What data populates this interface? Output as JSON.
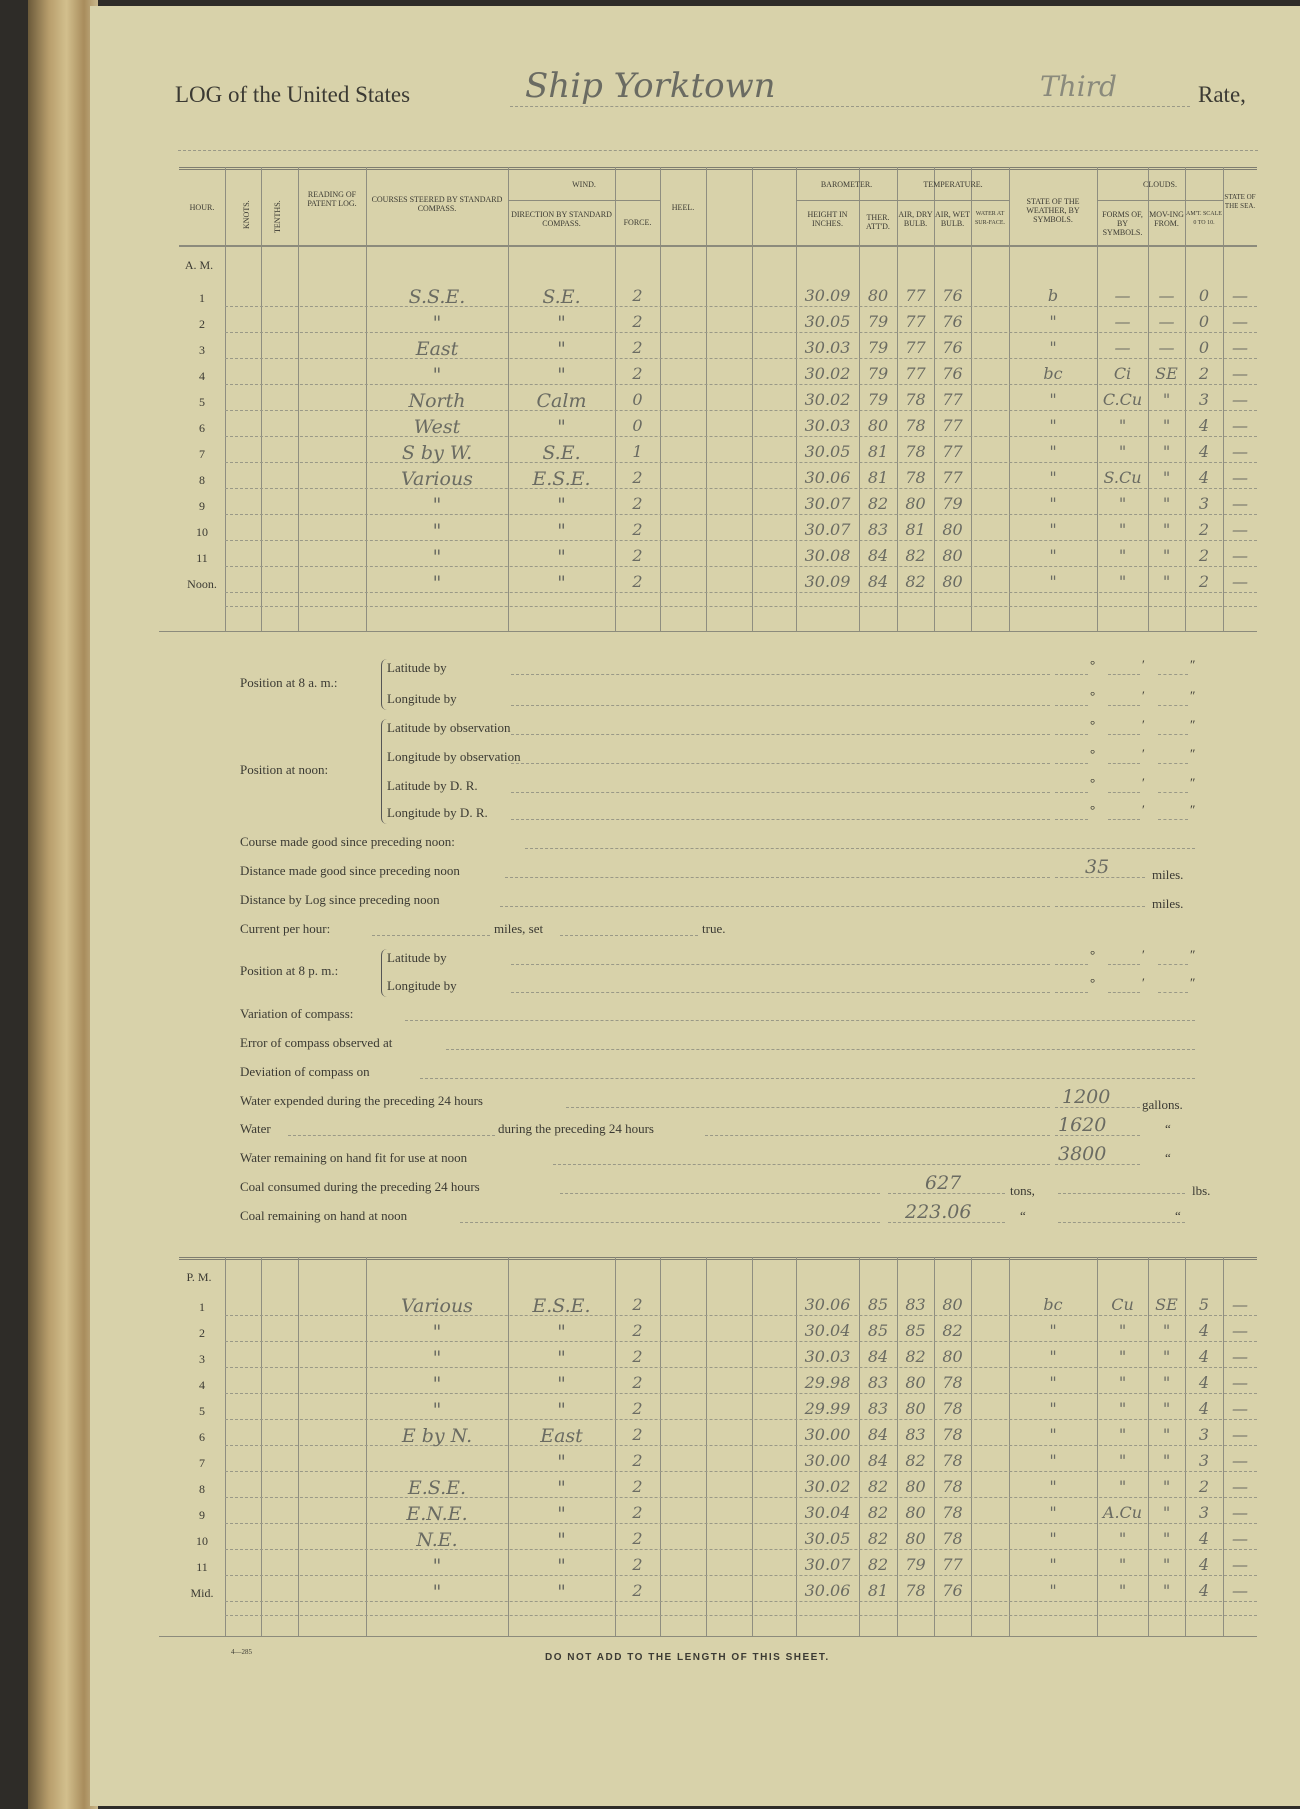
{
  "title": {
    "prefix": "LOG of the United States",
    "ship": "Ship Yorktown",
    "rate_value": "Third",
    "rate_label": "Rate,"
  },
  "headers": {
    "hour": "Hour.",
    "knots": "Knots.",
    "tenths": "Tenths.",
    "patent_log": "Reading of Patent Log.",
    "courses": "Courses steered by standard compass.",
    "wind": "Wind.",
    "wind_direction": "Direction by Standard Compass.",
    "wind_force": "Force.",
    "heel": "Heel.",
    "barometer": "Barometer.",
    "baro_height": "Height in Inches.",
    "ther_attd": "Ther. Att'd.",
    "temperature": "Temperature.",
    "air_dry": "Air, Dry Bulb.",
    "air_wet": "Air, Wet Bulb.",
    "water_surface": "Water at Sur-face.",
    "weather": "State of the Weather, by Symbols.",
    "clouds": "Clouds.",
    "cloud_forms": "Forms of, by Symbols.",
    "cloud_moving": "Mov-ing from.",
    "cloud_amount": "Am't. Scale 0 to 10.",
    "sea": "State of the Sea."
  },
  "am": {
    "label": "A. M.",
    "rows": [
      {
        "hour": "1",
        "course": "S.S.E.",
        "wind_dir": "S.E.",
        "force": "2",
        "baro": "30.09",
        "ther": "80",
        "dry": "77",
        "wet": "76",
        "weather": "b",
        "forms": "—",
        "moving": "—",
        "amount": "0",
        "sea": "—"
      },
      {
        "hour": "2",
        "course": "\"",
        "wind_dir": "\"",
        "force": "2",
        "baro": "30.05",
        "ther": "79",
        "dry": "77",
        "wet": "76",
        "weather": "\"",
        "forms": "—",
        "moving": "—",
        "amount": "0",
        "sea": "—"
      },
      {
        "hour": "3",
        "course": "East",
        "wind_dir": "\"",
        "force": "2",
        "baro": "30.03",
        "ther": "79",
        "dry": "77",
        "wet": "76",
        "weather": "\"",
        "forms": "—",
        "moving": "—",
        "amount": "0",
        "sea": "—"
      },
      {
        "hour": "4",
        "course": "\"",
        "wind_dir": "\"",
        "force": "2",
        "baro": "30.02",
        "ther": "79",
        "dry": "77",
        "wet": "76",
        "weather": "bc",
        "forms": "Ci",
        "moving": "SE",
        "amount": "2",
        "sea": "—"
      },
      {
        "hour": "5",
        "course": "North",
        "wind_dir": "Calm",
        "force": "0",
        "baro": "30.02",
        "ther": "79",
        "dry": "78",
        "wet": "77",
        "weather": "\"",
        "forms": "C.Cu",
        "moving": "\"",
        "amount": "3",
        "sea": "—"
      },
      {
        "hour": "6",
        "course": "West",
        "wind_dir": "\"",
        "force": "0",
        "baro": "30.03",
        "ther": "80",
        "dry": "78",
        "wet": "77",
        "weather": "\"",
        "forms": "\"",
        "moving": "\"",
        "amount": "4",
        "sea": "—"
      },
      {
        "hour": "7",
        "course": "S by W.",
        "wind_dir": "S.E.",
        "force": "1",
        "baro": "30.05",
        "ther": "81",
        "dry": "78",
        "wet": "77",
        "weather": "\"",
        "forms": "\"",
        "moving": "\"",
        "amount": "4",
        "sea": "—"
      },
      {
        "hour": "8",
        "course": "Various",
        "wind_dir": "E.S.E.",
        "force": "2",
        "baro": "30.06",
        "ther": "81",
        "dry": "78",
        "wet": "77",
        "weather": "\"",
        "forms": "S.Cu",
        "moving": "\"",
        "amount": "4",
        "sea": "—"
      },
      {
        "hour": "9",
        "course": "\"",
        "wind_dir": "\"",
        "force": "2",
        "baro": "30.07",
        "ther": "82",
        "dry": "80",
        "wet": "79",
        "weather": "\"",
        "forms": "\"",
        "moving": "\"",
        "amount": "3",
        "sea": "—"
      },
      {
        "hour": "10",
        "course": "\"",
        "wind_dir": "\"",
        "force": "2",
        "baro": "30.07",
        "ther": "83",
        "dry": "81",
        "wet": "80",
        "weather": "\"",
        "forms": "\"",
        "moving": "\"",
        "amount": "2",
        "sea": "—"
      },
      {
        "hour": "11",
        "course": "\"",
        "wind_dir": "\"",
        "force": "2",
        "baro": "30.08",
        "ther": "84",
        "dry": "82",
        "wet": "80",
        "weather": "\"",
        "forms": "\"",
        "moving": "\"",
        "amount": "2",
        "sea": "—"
      },
      {
        "hour": "Noon.",
        "course": "\"",
        "wind_dir": "\"",
        "force": "2",
        "baro": "30.09",
        "ther": "84",
        "dry": "82",
        "wet": "80",
        "weather": "\"",
        "forms": "\"",
        "moving": "\"",
        "amount": "2",
        "sea": "—"
      }
    ]
  },
  "pm": {
    "label": "P. M.",
    "rows": [
      {
        "hour": "1",
        "course": "Various",
        "wind_dir": "E.S.E.",
        "force": "2",
        "baro": "30.06",
        "ther": "85",
        "dry": "83",
        "wet": "80",
        "weather": "bc",
        "forms": "Cu",
        "moving": "SE",
        "amount": "5",
        "sea": "—"
      },
      {
        "hour": "2",
        "course": "\"",
        "wind_dir": "\"",
        "force": "2",
        "baro": "30.04",
        "ther": "85",
        "dry": "85",
        "wet": "82",
        "weather": "\"",
        "forms": "\"",
        "moving": "\"",
        "amount": "4",
        "sea": "—"
      },
      {
        "hour": "3",
        "course": "\"",
        "wind_dir": "\"",
        "force": "2",
        "baro": "30.03",
        "ther": "84",
        "dry": "82",
        "wet": "80",
        "weather": "\"",
        "forms": "\"",
        "moving": "\"",
        "amount": "4",
        "sea": "—"
      },
      {
        "hour": "4",
        "course": "\"",
        "wind_dir": "\"",
        "force": "2",
        "baro": "29.98",
        "ther": "83",
        "dry": "80",
        "wet": "78",
        "weather": "\"",
        "forms": "\"",
        "moving": "\"",
        "amount": "4",
        "sea": "—"
      },
      {
        "hour": "5",
        "course": "\"",
        "wind_dir": "\"",
        "force": "2",
        "baro": "29.99",
        "ther": "83",
        "dry": "80",
        "wet": "78",
        "weather": "\"",
        "forms": "\"",
        "moving": "\"",
        "amount": "4",
        "sea": "—"
      },
      {
        "hour": "6",
        "course": "E by N.",
        "wind_dir": "East",
        "force": "2",
        "baro": "30.00",
        "ther": "84",
        "dry": "83",
        "wet": "78",
        "weather": "\"",
        "forms": "\"",
        "moving": "\"",
        "amount": "3",
        "sea": "—"
      },
      {
        "hour": "7",
        "course": "",
        "wind_dir": "\"",
        "force": "2",
        "baro": "30.00",
        "ther": "84",
        "dry": "82",
        "wet": "78",
        "weather": "\"",
        "forms": "\"",
        "moving": "\"",
        "amount": "3",
        "sea": "—"
      },
      {
        "hour": "8",
        "course": "E.S.E.",
        "wind_dir": "\"",
        "force": "2",
        "baro": "30.02",
        "ther": "82",
        "dry": "80",
        "wet": "78",
        "weather": "\"",
        "forms": "\"",
        "moving": "\"",
        "amount": "2",
        "sea": "—"
      },
      {
        "hour": "9",
        "course": "E.N.E.",
        "wind_dir": "\"",
        "force": "2",
        "baro": "30.04",
        "ther": "82",
        "dry": "80",
        "wet": "78",
        "weather": "\"",
        "forms": "A.Cu",
        "moving": "\"",
        "amount": "3",
        "sea": "—"
      },
      {
        "hour": "10",
        "course": "N.E.",
        "wind_dir": "\"",
        "force": "2",
        "baro": "30.05",
        "ther": "82",
        "dry": "80",
        "wet": "78",
        "weather": "\"",
        "forms": "\"",
        "moving": "\"",
        "amount": "4",
        "sea": "—"
      },
      {
        "hour": "11",
        "course": "\"",
        "wind_dir": "\"",
        "force": "2",
        "baro": "30.07",
        "ther": "82",
        "dry": "79",
        "wet": "77",
        "weather": "\"",
        "forms": "\"",
        "moving": "\"",
        "amount": "4",
        "sea": "—"
      },
      {
        "hour": "Mid.",
        "course": "\"",
        "wind_dir": "\"",
        "force": "2",
        "baro": "30.06",
        "ther": "81",
        "dry": "78",
        "wet": "76",
        "weather": "\"",
        "forms": "\"",
        "moving": "\"",
        "amount": "4",
        "sea": "—"
      }
    ]
  },
  "position": {
    "at_8am": {
      "label": "Position at 8 a. m.:",
      "lines": [
        "Latitude by",
        "Longitude by"
      ]
    },
    "at_noon": {
      "label": "Position at noon:",
      "lines": [
        "Latitude by observation",
        "Longitude by observation",
        "Latitude by D. R.",
        "Longitude by D. R."
      ]
    },
    "at_8pm": {
      "label": "Position at 8 p. m.:",
      "lines": [
        "Latitude by",
        "Longitude by"
      ]
    },
    "marks": {
      "degree": "°",
      "minute": "′",
      "second": "″"
    }
  },
  "lines": {
    "course_made_good": "Course made good since preceding noon:",
    "distance_made_good": "Distance made good since preceding noon",
    "distance_made_good_value": "35",
    "distance_by_log": "Distance by Log since preceding noon",
    "miles": "miles.",
    "current_per_hour": "Current per hour:",
    "miles_set": "miles, set",
    "true": "true.",
    "variation": "Variation of compass:",
    "error": "Error of compass observed at",
    "deviation": "Deviation of compass on",
    "water_expended": "Water expended during the preceding 24 hours",
    "water_expended_value": "1200",
    "gallons": "gallons.",
    "water_during": "Water",
    "water_during_2": "during the preceding 24 hours",
    "water_during_value": "1620",
    "water_remaining": "Water remaining on hand fit for use at noon",
    "water_remaining_value": "3800",
    "ditto": "“",
    "coal_consumed": "Coal consumed during the preceding 24 hours",
    "coal_consumed_value": "627",
    "tons": "tons,",
    "lbs": "lbs.",
    "coal_remaining": "Coal remaining on hand at noon",
    "coal_remaining_value": "223.06"
  },
  "footer": {
    "form_number": "4—285",
    "notice": "DO NOT ADD TO THE LENGTH OF THIS SHEET."
  }
}
